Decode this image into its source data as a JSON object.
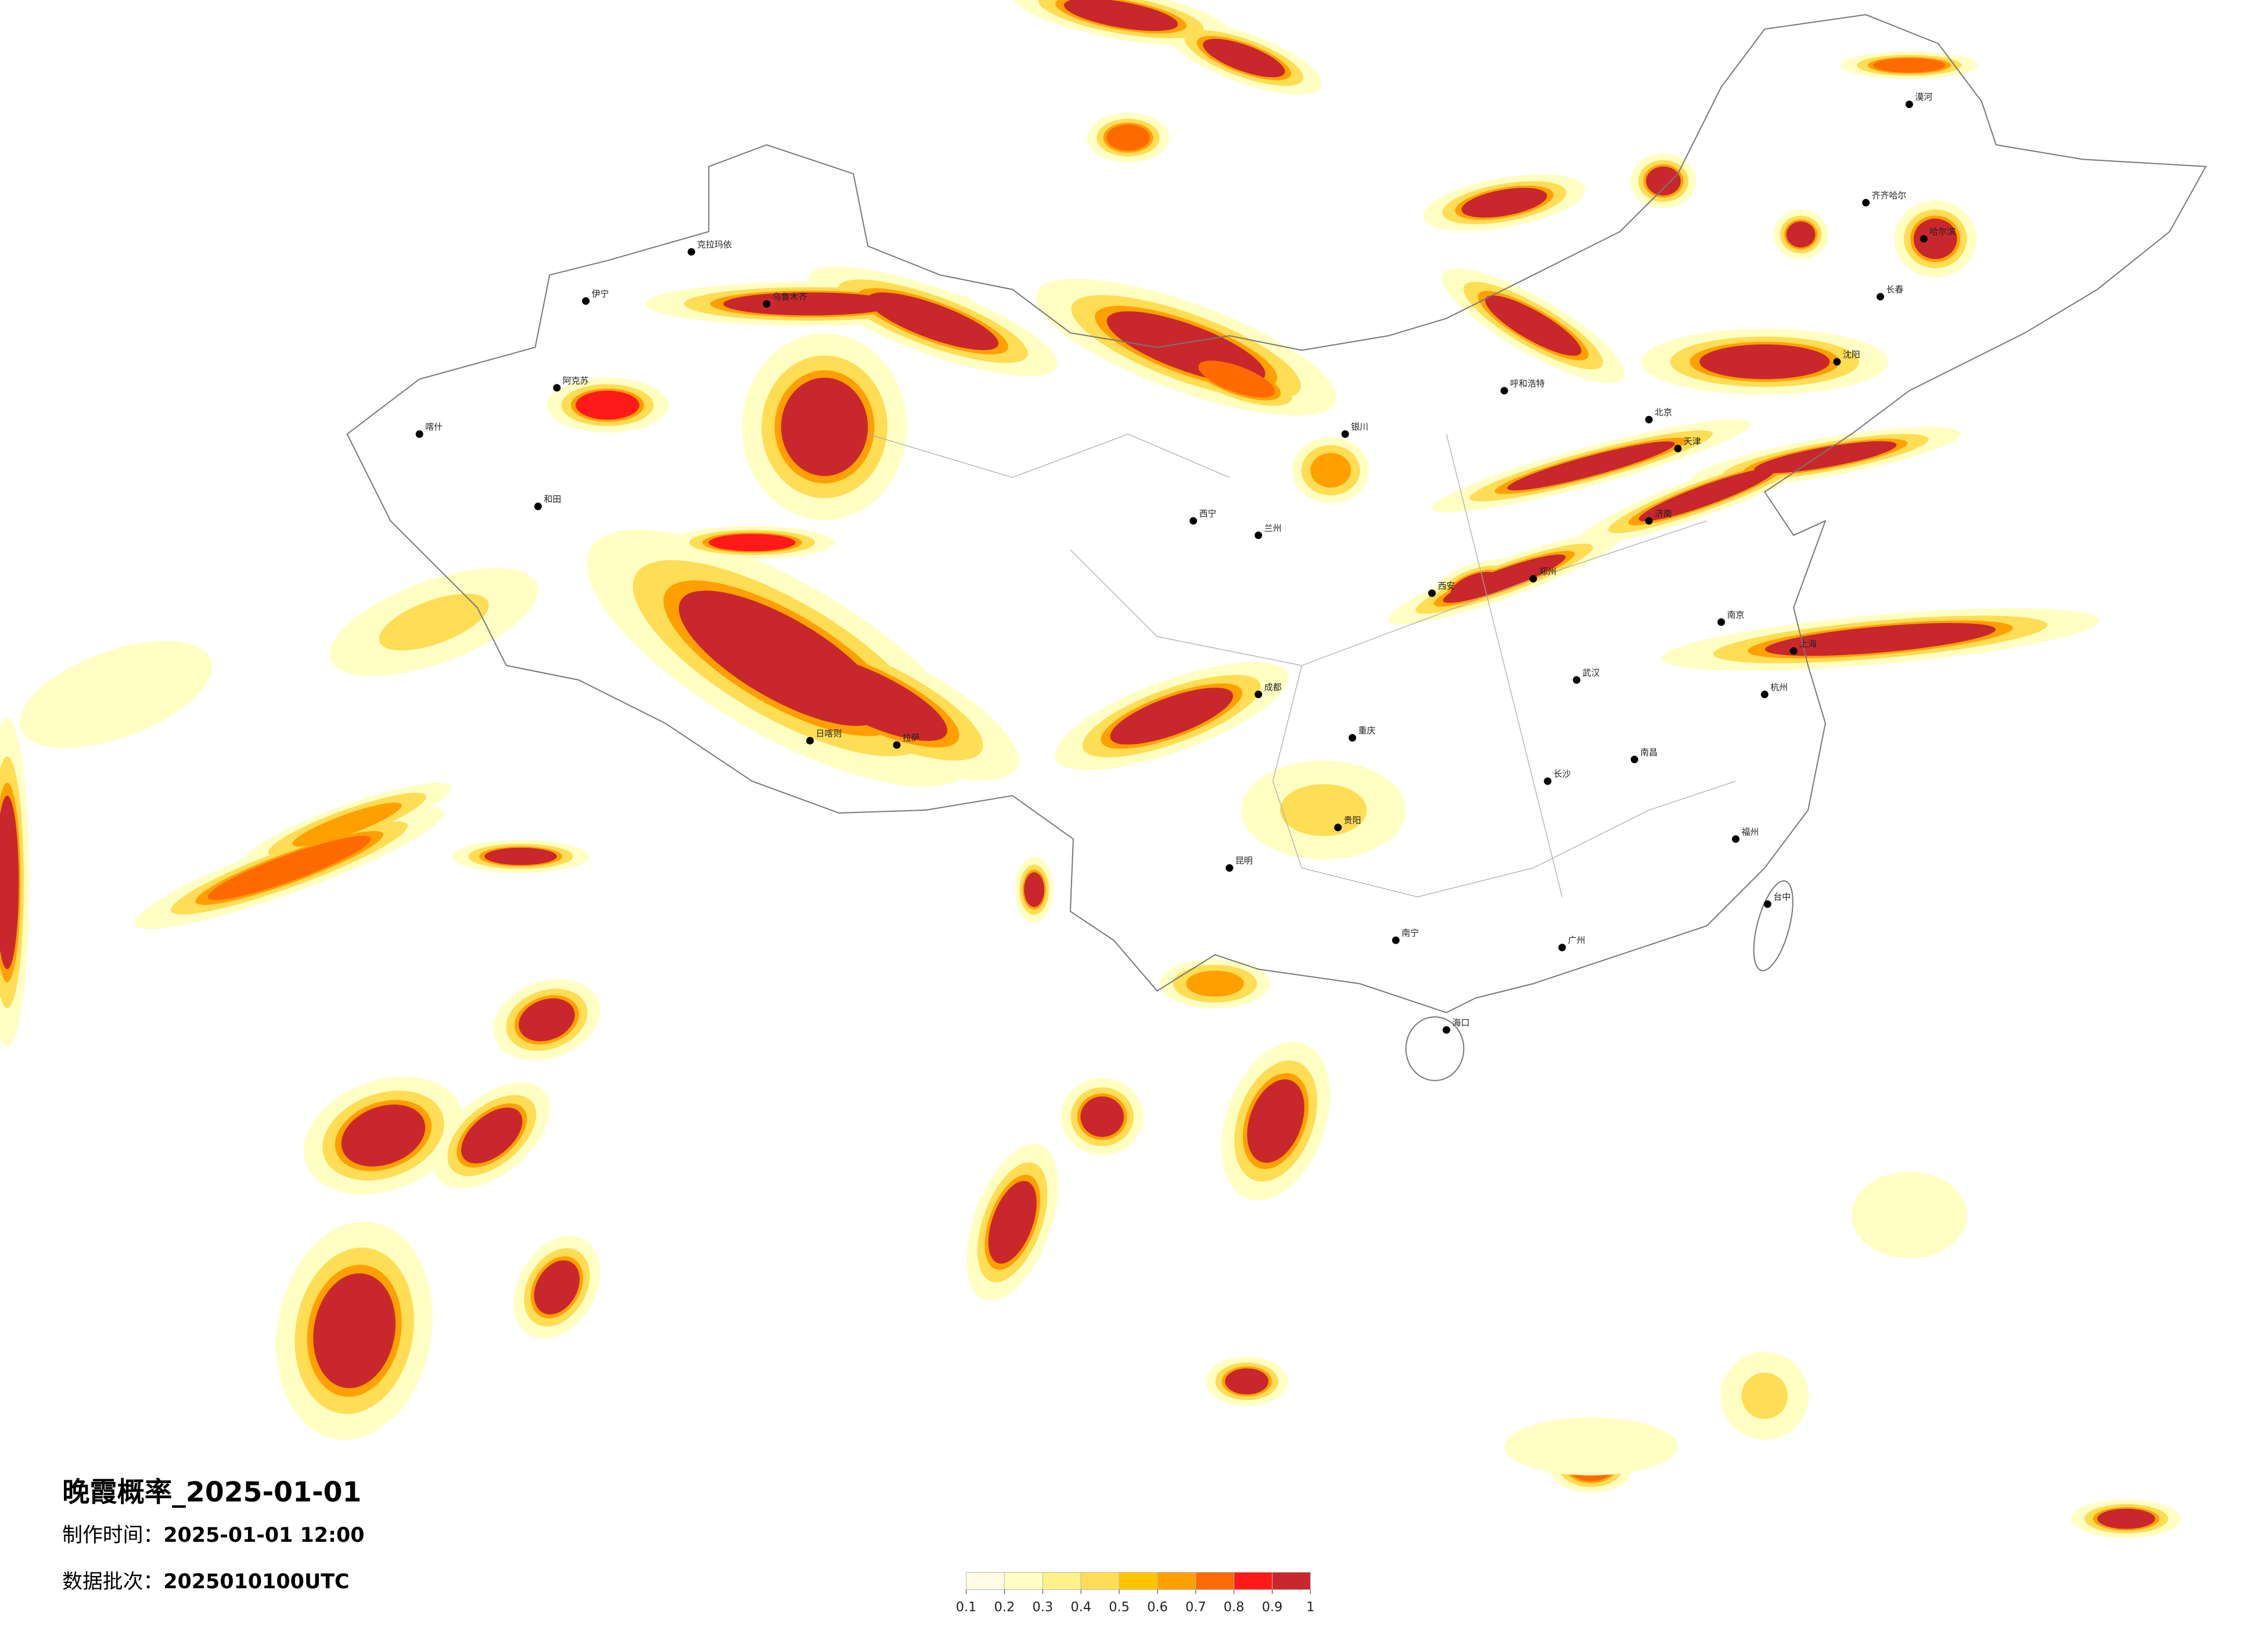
{
  "title": "晚霞概率_2025-01-01",
  "made_label": "制作时间：",
  "made_time": "2025-01-01 12:00",
  "batch_label": "数据批次：",
  "batch": "2025010100UTC",
  "colorbar": {
    "ticks": [
      0.1,
      0.2,
      0.3,
      0.4,
      0.5,
      0.6,
      0.7,
      0.8,
      0.9,
      1
    ],
    "colors": [
      "#fffde6",
      "#ffffc4",
      "#fff08a",
      "#ffdd55",
      "#ffc400",
      "#ffa000",
      "#ff6a00",
      "#ff1a1a",
      "#c8282d"
    ]
  },
  "cities": [
    "漠河",
    "哈尔滨",
    "齐齐哈尔",
    "长春",
    "沈阳",
    "呼和浩特",
    "北京",
    "天津",
    "济南",
    "郑州",
    "西安",
    "银川",
    "兰州",
    "西宁",
    "乌鲁木齐",
    "伊宁",
    "克拉玛依",
    "阿克苏",
    "喀什",
    "和田",
    "日喀则",
    "拉萨",
    "成都",
    "重庆",
    "贵阳",
    "昆明",
    "南宁",
    "广州",
    "海口",
    "长沙",
    "武汉",
    "南昌",
    "南京",
    "上海",
    "杭州",
    "福州",
    "台中"
  ]
}
